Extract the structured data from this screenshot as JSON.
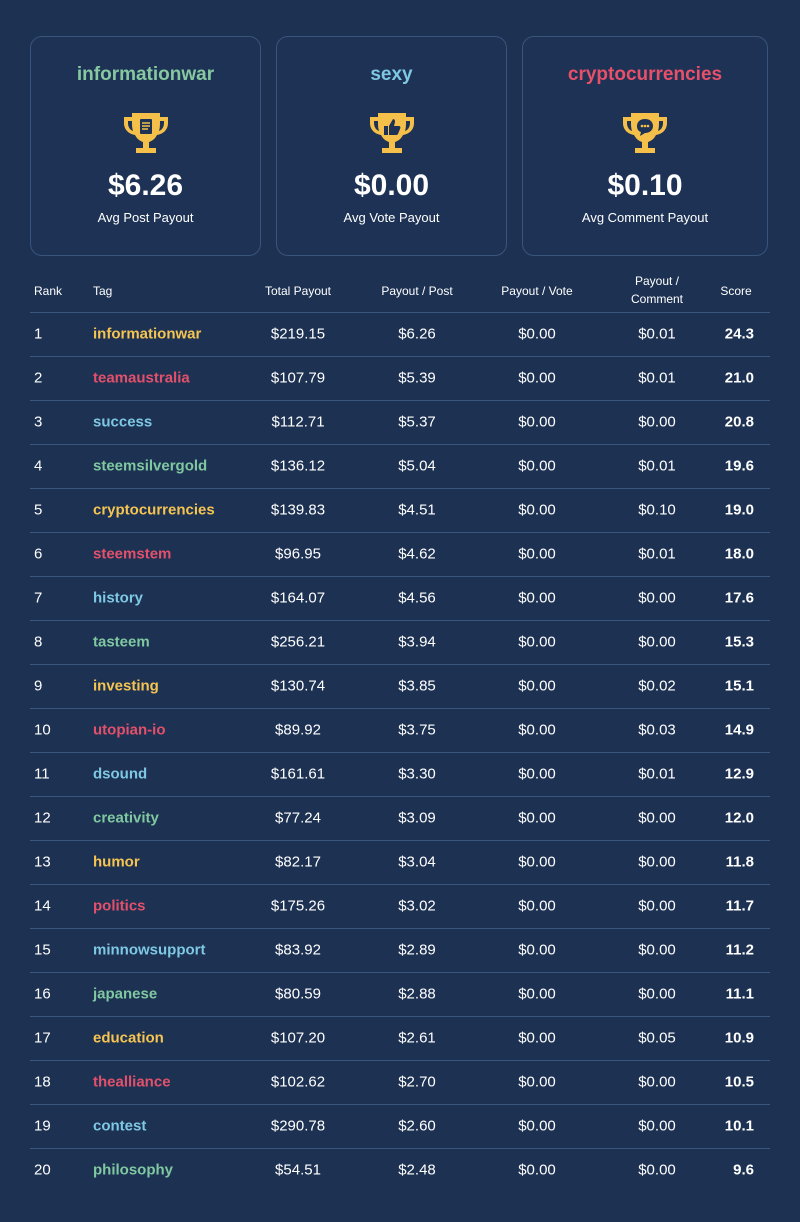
{
  "cards": [
    {
      "tag": "informationwar",
      "value": "$6.26",
      "label": "Avg Post Payout"
    },
    {
      "tag": "sexy",
      "value": "$0.00",
      "label": "Avg Vote Payout"
    },
    {
      "tag": "cryptocurrencies",
      "value": "$0.10",
      "label": "Avg Comment Payout"
    }
  ],
  "table": {
    "headers": [
      "Rank",
      "Tag",
      "Total Payout",
      "Payout / Post",
      "Payout / Vote",
      "Payout / Comment",
      "Score"
    ],
    "rows": [
      [
        "1",
        "informationwar",
        "$219.15",
        "$6.26",
        "$0.00",
        "$0.01",
        "24.3"
      ],
      [
        "2",
        "teamaustralia",
        "$107.79",
        "$5.39",
        "$0.00",
        "$0.01",
        "21.0"
      ],
      [
        "3",
        "success",
        "$112.71",
        "$5.37",
        "$0.00",
        "$0.00",
        "20.8"
      ],
      [
        "4",
        "steemsilvergold",
        "$136.12",
        "$5.04",
        "$0.00",
        "$0.01",
        "19.6"
      ],
      [
        "5",
        "cryptocurrencies",
        "$139.83",
        "$4.51",
        "$0.00",
        "$0.10",
        "19.0"
      ],
      [
        "6",
        "steemstem",
        "$96.95",
        "$4.62",
        "$0.00",
        "$0.01",
        "18.0"
      ],
      [
        "7",
        "history",
        "$164.07",
        "$4.56",
        "$0.00",
        "$0.00",
        "17.6"
      ],
      [
        "8",
        "tasteem",
        "$256.21",
        "$3.94",
        "$0.00",
        "$0.00",
        "15.3"
      ],
      [
        "9",
        "investing",
        "$130.74",
        "$3.85",
        "$0.00",
        "$0.02",
        "15.1"
      ],
      [
        "10",
        "utopian-io",
        "$89.92",
        "$3.75",
        "$0.00",
        "$0.03",
        "14.9"
      ],
      [
        "11",
        "dsound",
        "$161.61",
        "$3.30",
        "$0.00",
        "$0.01",
        "12.9"
      ],
      [
        "12",
        "creativity",
        "$77.24",
        "$3.09",
        "$0.00",
        "$0.00",
        "12.0"
      ],
      [
        "13",
        "humor",
        "$82.17",
        "$3.04",
        "$0.00",
        "$0.00",
        "11.8"
      ],
      [
        "14",
        "politics",
        "$175.26",
        "$3.02",
        "$0.00",
        "$0.00",
        "11.7"
      ],
      [
        "15",
        "minnowsupport",
        "$83.92",
        "$2.89",
        "$0.00",
        "$0.00",
        "11.2"
      ],
      [
        "16",
        "japanese",
        "$80.59",
        "$2.88",
        "$0.00",
        "$0.00",
        "11.1"
      ],
      [
        "17",
        "education",
        "$107.20",
        "$2.61",
        "$0.00",
        "$0.05",
        "10.9"
      ],
      [
        "18",
        "thealliance",
        "$102.62",
        "$2.70",
        "$0.00",
        "$0.00",
        "10.5"
      ],
      [
        "19",
        "contest",
        "$290.78",
        "$2.60",
        "$0.00",
        "$0.00",
        "10.1"
      ],
      [
        "20",
        "philosophy",
        "$54.51",
        "$2.48",
        "$0.00",
        "$0.00",
        "9.6"
      ]
    ]
  }
}
